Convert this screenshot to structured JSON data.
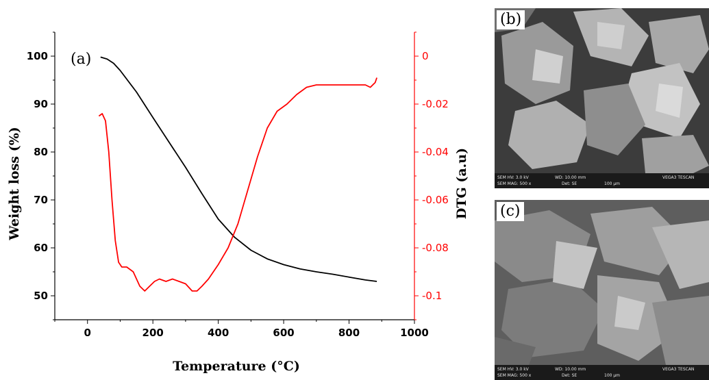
{
  "chart_data": {
    "type": "line",
    "panel_label": "(a)",
    "xlabel": "Temperature (°C)",
    "ylabel_left": "Weight loss (%)",
    "ylabel_right": "DTG (a.u)",
    "xlim": [
      -100,
      1000
    ],
    "ylim_left": [
      45,
      105
    ],
    "ylim_right": [
      -0.11,
      0.01
    ],
    "x_ticks": [
      0,
      200,
      400,
      600,
      800,
      1000
    ],
    "y_left_ticks": [
      50,
      60,
      70,
      80,
      90,
      100
    ],
    "y_right_ticks": [
      0,
      -0.02,
      -0.04,
      -0.06,
      -0.08,
      -0.1
    ],
    "y_right_tick_labels": [
      "0",
      "-0.02",
      "-0.04",
      "-0.06",
      "-0.08",
      "-0.1"
    ],
    "series": [
      {
        "axis": "left",
        "color": "#000000",
        "x": [
          40,
          60,
          80,
          100,
          150,
          200,
          250,
          300,
          350,
          400,
          450,
          500,
          550,
          600,
          650,
          700,
          750,
          800,
          850,
          885
        ],
        "y": [
          99.8,
          99.4,
          98.5,
          97.0,
          92.5,
          87.2,
          82.0,
          76.8,
          71.3,
          66.0,
          62.2,
          59.5,
          57.7,
          56.5,
          55.6,
          55.0,
          54.5,
          53.9,
          53.3,
          53.0
        ]
      },
      {
        "axis": "right",
        "color": "#ff0000",
        "x": [
          35,
          45,
          55,
          65,
          75,
          85,
          95,
          105,
          120,
          140,
          160,
          175,
          190,
          205,
          220,
          240,
          260,
          280,
          300,
          320,
          335,
          350,
          370,
          400,
          430,
          460,
          490,
          520,
          550,
          580,
          610,
          640,
          670,
          700,
          730,
          760,
          790,
          820,
          850,
          865,
          880,
          885
        ],
        "y": [
          -0.025,
          -0.024,
          -0.027,
          -0.04,
          -0.06,
          -0.077,
          -0.086,
          -0.088,
          -0.088,
          -0.09,
          -0.096,
          -0.098,
          -0.096,
          -0.094,
          -0.093,
          -0.094,
          -0.093,
          -0.094,
          -0.095,
          -0.098,
          -0.098,
          -0.096,
          -0.093,
          -0.087,
          -0.08,
          -0.07,
          -0.056,
          -0.042,
          -0.03,
          -0.023,
          -0.02,
          -0.016,
          -0.013,
          -0.012,
          -0.012,
          -0.012,
          -0.012,
          -0.012,
          -0.012,
          -0.013,
          -0.011,
          -0.009
        ]
      }
    ]
  },
  "sem_panels": [
    {
      "label": "(b)",
      "databar": {
        "hv": "SEM HV: 3.0 kV",
        "wd": "WD: 10.00 mm",
        "mag": "SEM MAG: 500 x",
        "det": "Det: SE",
        "scale": "100 μm",
        "brand": "VEGA3 TESCAN"
      }
    },
    {
      "label": "(c)",
      "databar": {
        "hv": "SEM HV: 3.0 kV",
        "wd": "WD: 10.00 mm",
        "mag": "SEM MAG: 500 x",
        "det": "Det: SE",
        "scale": "100 μm",
        "brand": "VEGA3 TESCAN"
      }
    }
  ]
}
